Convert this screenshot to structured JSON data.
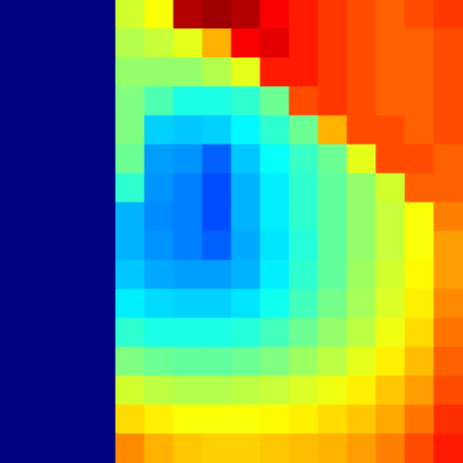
{
  "chart_data": {
    "type": "heatmap",
    "tick_labels": false,
    "color_range": [
      0,
      1
    ],
    "cells": [
      [
        0,
        0,
        0,
        0,
        0.58,
        0.62,
        0.95,
        0.97,
        0.95,
        0.88,
        0.85,
        0.82,
        0.8,
        0.78,
        0.8,
        0.82
      ],
      [
        0,
        0,
        0,
        0,
        0.55,
        0.57,
        0.6,
        0.7,
        0.88,
        0.9,
        0.85,
        0.82,
        0.8,
        0.78,
        0.78,
        0.8
      ],
      [
        0,
        0,
        0,
        0,
        0.52,
        0.52,
        0.52,
        0.55,
        0.6,
        0.85,
        0.85,
        0.82,
        0.8,
        0.78,
        0.78,
        0.8
      ],
      [
        0,
        0,
        0,
        0,
        0.5,
        0.45,
        0.4,
        0.4,
        0.42,
        0.48,
        0.8,
        0.82,
        0.8,
        0.78,
        0.78,
        0.8
      ],
      [
        0,
        0,
        0,
        0,
        0.5,
        0.33,
        0.32,
        0.33,
        0.37,
        0.42,
        0.48,
        0.7,
        0.8,
        0.8,
        0.78,
        0.8
      ],
      [
        0,
        0,
        0,
        0,
        0.48,
        0.28,
        0.27,
        0.22,
        0.32,
        0.38,
        0.43,
        0.48,
        0.6,
        0.8,
        0.8,
        0.78
      ],
      [
        0,
        0,
        0,
        0,
        0.42,
        0.27,
        0.25,
        0.2,
        0.3,
        0.36,
        0.42,
        0.47,
        0.52,
        0.58,
        0.78,
        0.78
      ],
      [
        0,
        0,
        0,
        0,
        0.3,
        0.26,
        0.25,
        0.2,
        0.3,
        0.36,
        0.42,
        0.47,
        0.52,
        0.57,
        0.62,
        0.75
      ],
      [
        0,
        0,
        0,
        0,
        0.3,
        0.27,
        0.25,
        0.22,
        0.29,
        0.35,
        0.41,
        0.47,
        0.52,
        0.57,
        0.62,
        0.72
      ],
      [
        0,
        0,
        0,
        0,
        0.32,
        0.29,
        0.28,
        0.28,
        0.3,
        0.36,
        0.42,
        0.47,
        0.53,
        0.58,
        0.63,
        0.72
      ],
      [
        0,
        0,
        0,
        0,
        0.36,
        0.34,
        0.33,
        0.33,
        0.35,
        0.39,
        0.44,
        0.49,
        0.54,
        0.59,
        0.64,
        0.74
      ],
      [
        0,
        0,
        0,
        0,
        0.42,
        0.4,
        0.4,
        0.4,
        0.41,
        0.44,
        0.48,
        0.52,
        0.56,
        0.61,
        0.66,
        0.76
      ],
      [
        0,
        0,
        0,
        0,
        0.5,
        0.48,
        0.47,
        0.47,
        0.48,
        0.5,
        0.53,
        0.56,
        0.6,
        0.64,
        0.69,
        0.78
      ],
      [
        0,
        0,
        0,
        0,
        0.58,
        0.56,
        0.55,
        0.55,
        0.56,
        0.57,
        0.59,
        0.61,
        0.64,
        0.68,
        0.72,
        0.8
      ],
      [
        0,
        0,
        0,
        0,
        0.66,
        0.64,
        0.62,
        0.62,
        0.62,
        0.63,
        0.64,
        0.66,
        0.68,
        0.71,
        0.76,
        0.83
      ],
      [
        0,
        0,
        0,
        0,
        0.74,
        0.7,
        0.68,
        0.67,
        0.67,
        0.68,
        0.69,
        0.7,
        0.72,
        0.75,
        0.8,
        0.85
      ]
    ]
  }
}
